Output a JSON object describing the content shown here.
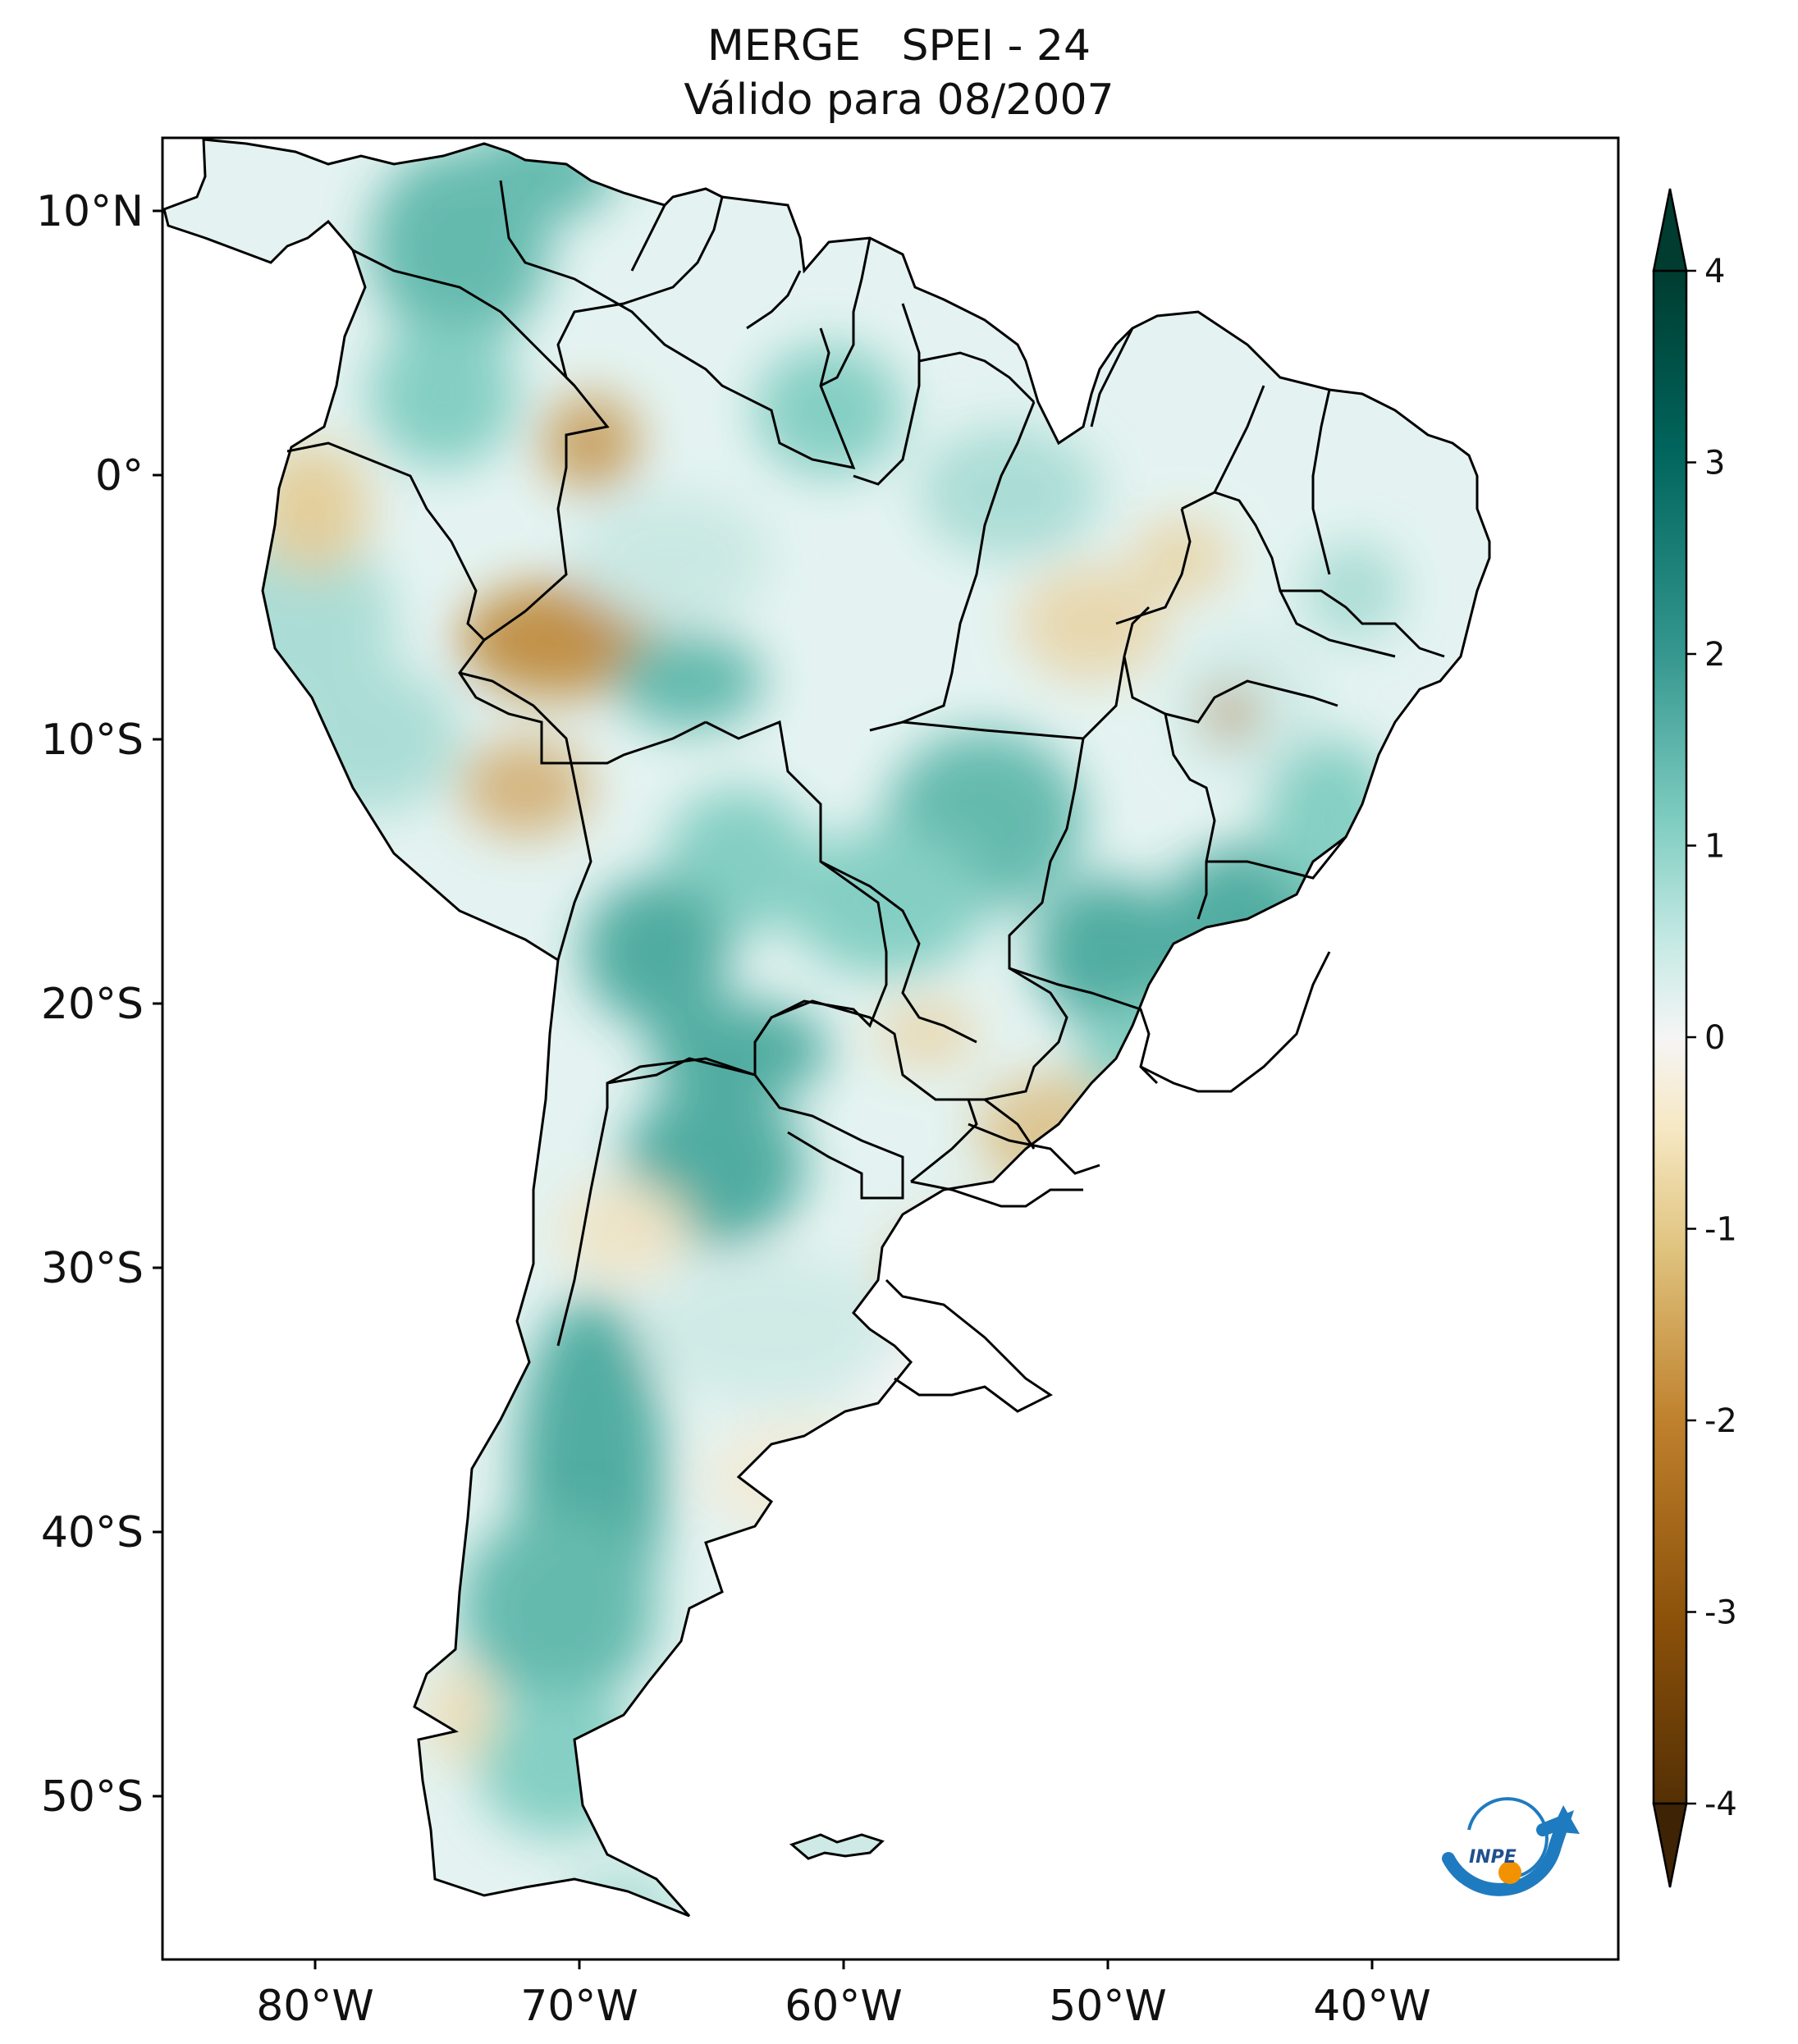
{
  "title": {
    "line1": "MERGE   SPEI - 24",
    "line2": "Válido para 08/2007"
  },
  "map": {
    "lon_ticks": [
      "80°W",
      "70°W",
      "60°W",
      "50°W",
      "40°W"
    ],
    "lat_ticks": [
      "10°N",
      "0°",
      "10°S",
      "20°S",
      "30°S",
      "40°S",
      "50°S"
    ],
    "extent": {
      "lon_min": -85,
      "lon_max": -30,
      "lat_min": -56,
      "lat_max": 13
    }
  },
  "colorbar": {
    "ticks": [
      "4",
      "3",
      "2",
      "1",
      "0",
      "-1",
      "-2",
      "-3",
      "-4"
    ],
    "min": -4,
    "max": 4,
    "colormap": "BrBG",
    "colors": [
      "#543005",
      "#8c510a",
      "#bf812d",
      "#dfc27d",
      "#f6e8c3",
      "#f5f5f5",
      "#c7eae5",
      "#80cdc1",
      "#35978f",
      "#01665e",
      "#003c30"
    ]
  },
  "logo": {
    "text": "INPE",
    "icon": "inpe-logo-icon"
  }
}
